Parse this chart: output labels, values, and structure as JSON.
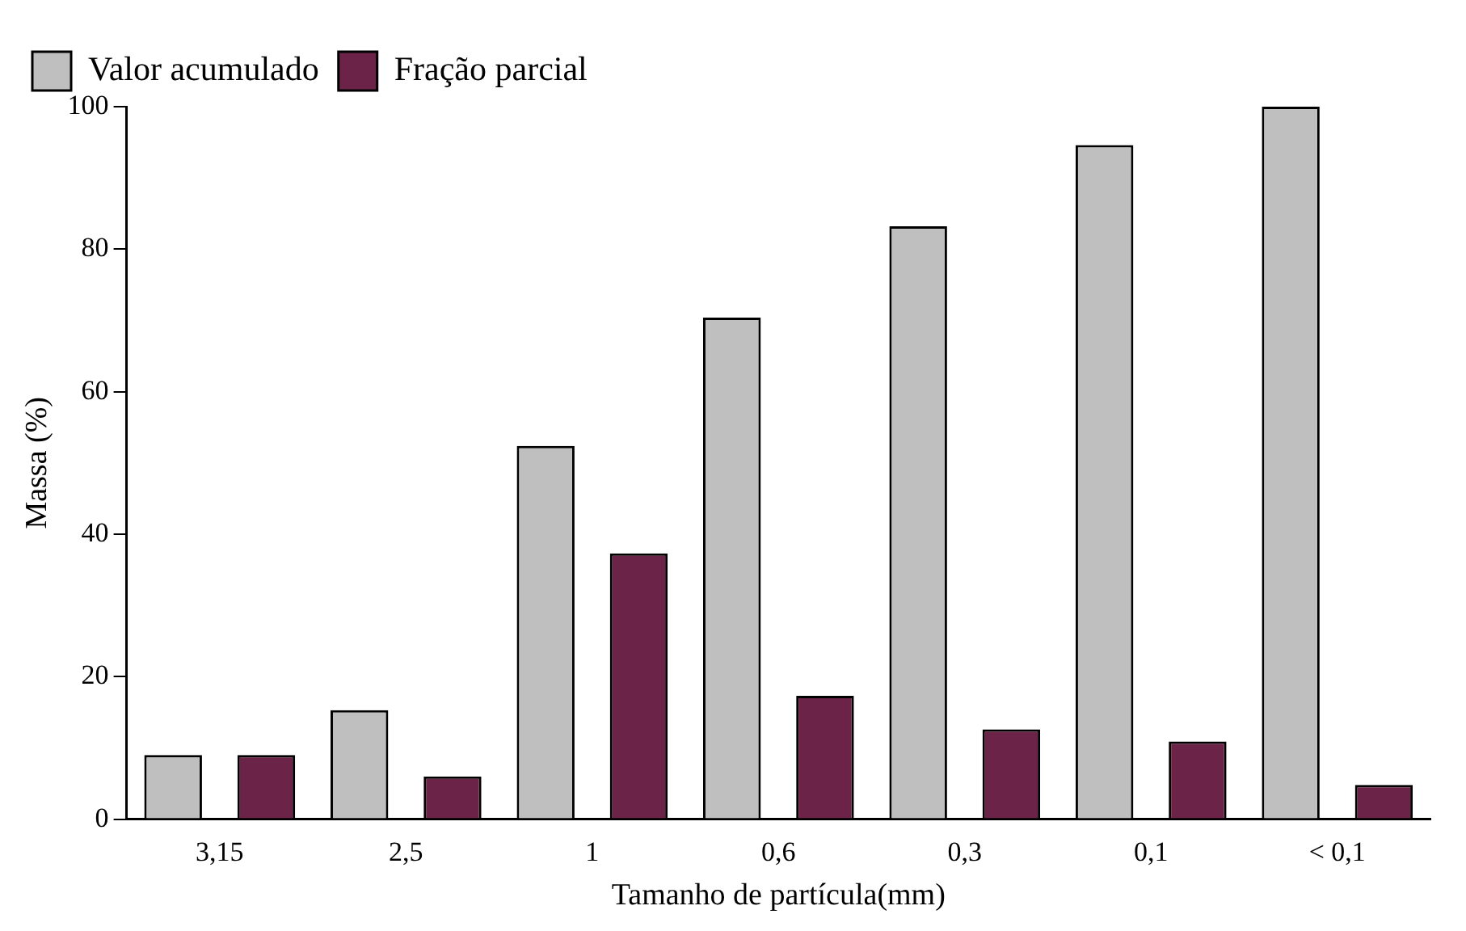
{
  "chart_data": {
    "type": "bar",
    "xlabel": "Tamanho de partícula(mm)",
    "ylabel": "Massa (%)",
    "categories": [
      "3,15",
      "2,5",
      "1",
      "0,6",
      "0,3",
      "0,1",
      "< 0,1"
    ],
    "series": [
      {
        "name": "Valor acumulado",
        "color": "#bfbfbf",
        "values": [
          9,
          15.3,
          52.4,
          70.4,
          83.2,
          94.6,
          100
        ]
      },
      {
        "name": "Fração parcial",
        "color": "#6b2347",
        "values": [
          9,
          6,
          37.3,
          17.3,
          12.6,
          10.9,
          4.8
        ]
      }
    ],
    "ylim": [
      0,
      100
    ],
    "yticks": [
      0,
      20,
      40,
      60,
      80,
      100
    ],
    "grid": false,
    "legend": "top left"
  }
}
